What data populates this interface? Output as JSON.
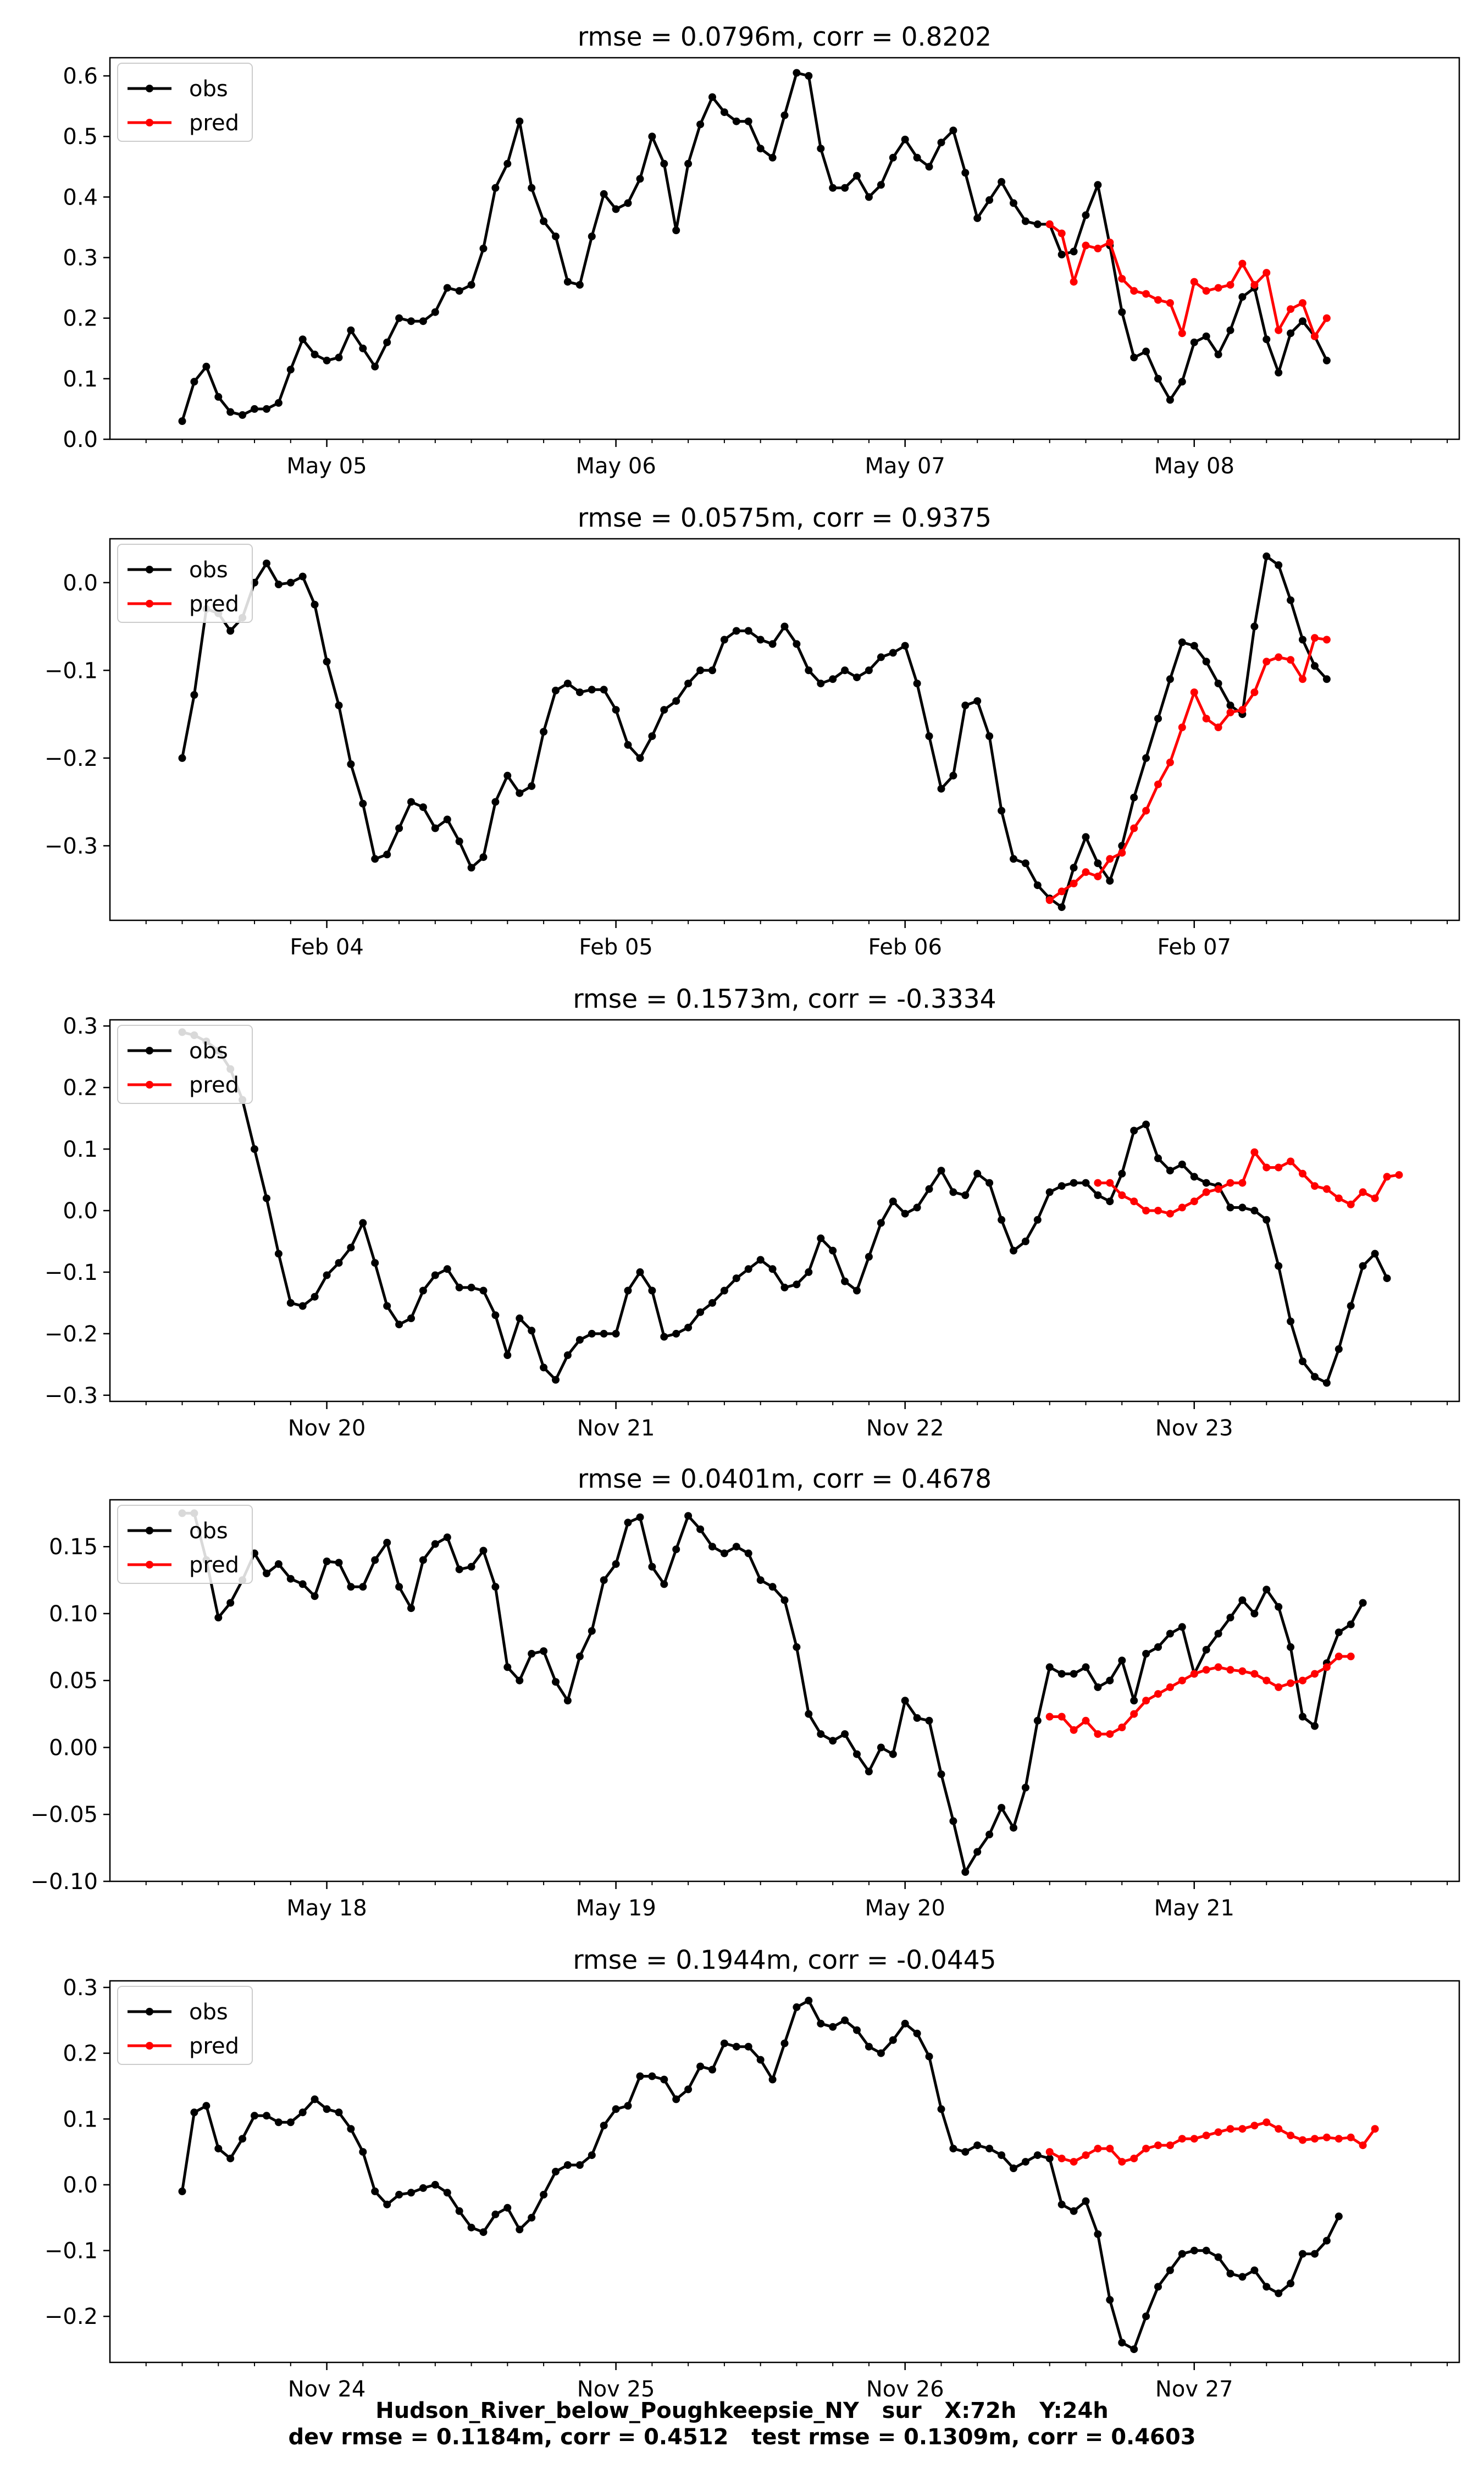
{
  "footer": {
    "line1": "Hudson_River_below_Poughkeepsie_NY   sur   X:72h   Y:24h",
    "line2": "dev rmse = 0.1184m, corr = 0.4512   test rmse = 0.1309m, corr = 0.4603"
  },
  "colors": {
    "obs": "#000000",
    "pred": "#ff0000"
  },
  "chart_data": [
    {
      "type": "line",
      "title": "rmse = 0.0796m, corr = 0.8202",
      "legend": "top-left",
      "x_tick_labels": [
        "May 05",
        "May 06",
        "May 07",
        "May 08"
      ],
      "yticks": [
        "0.0",
        "0.1",
        "0.2",
        "0.3",
        "0.4",
        "0.5",
        "0.6"
      ],
      "ylim": [
        0.0,
        0.63
      ],
      "series": [
        {
          "name": "obs",
          "values": [
            0.03,
            0.095,
            0.12,
            0.07,
            0.045,
            0.04,
            0.05,
            0.05,
            0.06,
            0.115,
            0.165,
            0.14,
            0.13,
            0.135,
            0.18,
            0.15,
            0.12,
            0.16,
            0.2,
            0.195,
            0.195,
            0.21,
            0.25,
            0.245,
            0.255,
            0.315,
            0.415,
            0.455,
            0.525,
            0.415,
            0.36,
            0.335,
            0.26,
            0.255,
            0.335,
            0.405,
            0.38,
            0.39,
            0.43,
            0.5,
            0.455,
            0.345,
            0.455,
            0.52,
            0.565,
            0.54,
            0.525,
            0.525,
            0.48,
            0.465,
            0.535,
            0.605,
            0.6,
            0.48,
            0.415,
            0.415,
            0.435,
            0.4,
            0.42,
            0.465,
            0.495,
            0.465,
            0.45,
            0.49,
            0.51,
            0.44,
            0.365,
            0.395,
            0.425,
            0.39,
            0.36,
            0.355,
            0.355,
            0.305,
            0.31,
            0.37,
            0.42,
            0.32,
            0.21,
            0.135,
            0.145,
            0.1,
            0.065,
            0.095,
            0.16,
            0.17,
            0.14,
            0.18,
            0.235,
            0.25,
            0.165,
            0.11,
            0.175,
            0.195,
            0.17,
            0.13
          ]
        },
        {
          "name": "pred",
          "x_start": 72,
          "values": [
            0.355,
            0.34,
            0.26,
            0.32,
            0.315,
            0.325,
            0.265,
            0.245,
            0.24,
            0.23,
            0.225,
            0.175,
            0.26,
            0.245,
            0.25,
            0.255,
            0.29,
            0.255,
            0.275,
            0.18,
            0.215,
            0.225,
            0.17,
            0.2
          ]
        }
      ]
    },
    {
      "type": "line",
      "title": "rmse = 0.0575m, corr = 0.9375",
      "legend": "top-left",
      "x_tick_labels": [
        "Feb 04",
        "Feb 05",
        "Feb 06",
        "Feb 07"
      ],
      "yticks": [
        "−0.3",
        "−0.2",
        "−0.1",
        "0.0"
      ],
      "ylim": [
        -0.385,
        0.05
      ],
      "series": [
        {
          "name": "obs",
          "values": [
            -0.2,
            -0.128,
            -0.03,
            -0.035,
            -0.055,
            -0.04,
            0.0,
            0.022,
            -0.002,
            0.0,
            0.007,
            -0.025,
            -0.09,
            -0.14,
            -0.207,
            -0.252,
            -0.315,
            -0.31,
            -0.28,
            -0.25,
            -0.256,
            -0.28,
            -0.27,
            -0.295,
            -0.325,
            -0.313,
            -0.25,
            -0.22,
            -0.24,
            -0.232,
            -0.17,
            -0.123,
            -0.115,
            -0.125,
            -0.122,
            -0.122,
            -0.145,
            -0.185,
            -0.2,
            -0.175,
            -0.145,
            -0.135,
            -0.115,
            -0.1,
            -0.1,
            -0.065,
            -0.055,
            -0.055,
            -0.065,
            -0.07,
            -0.05,
            -0.07,
            -0.1,
            -0.115,
            -0.11,
            -0.1,
            -0.108,
            -0.1,
            -0.085,
            -0.08,
            -0.072,
            -0.115,
            -0.175,
            -0.235,
            -0.22,
            -0.14,
            -0.135,
            -0.175,
            -0.26,
            -0.315,
            -0.32,
            -0.345,
            -0.36,
            -0.37,
            -0.325,
            -0.29,
            -0.32,
            -0.34,
            -0.3,
            -0.245,
            -0.2,
            -0.155,
            -0.11,
            -0.068,
            -0.072,
            -0.09,
            -0.115,
            -0.14,
            -0.15,
            -0.05,
            0.03,
            0.02,
            -0.02,
            -0.065,
            -0.095,
            -0.11
          ]
        },
        {
          "name": "pred",
          "x_start": 72,
          "values": [
            -0.362,
            -0.352,
            -0.343,
            -0.33,
            -0.335,
            -0.315,
            -0.308,
            -0.28,
            -0.26,
            -0.23,
            -0.205,
            -0.165,
            -0.125,
            -0.155,
            -0.165,
            -0.148,
            -0.145,
            -0.125,
            -0.09,
            -0.085,
            -0.088,
            -0.11,
            -0.063,
            -0.065
          ]
        }
      ]
    },
    {
      "type": "line",
      "title": "rmse = 0.1573m, corr = -0.3334",
      "legend": "top-left",
      "x_tick_labels": [
        "Nov 20",
        "Nov 21",
        "Nov 22",
        "Nov 23"
      ],
      "yticks": [
        "−0.3",
        "−0.2",
        "−0.1",
        "0.0",
        "0.1",
        "0.2",
        "0.3"
      ],
      "ylim": [
        -0.31,
        0.31
      ],
      "series": [
        {
          "name": "obs",
          "values": [
            0.29,
            0.285,
            0.275,
            0.26,
            0.23,
            0.18,
            0.1,
            0.02,
            -0.07,
            -0.15,
            -0.155,
            -0.14,
            -0.105,
            -0.085,
            -0.06,
            -0.02,
            -0.085,
            -0.155,
            -0.185,
            -0.175,
            -0.13,
            -0.105,
            -0.095,
            -0.125,
            -0.125,
            -0.13,
            -0.17,
            -0.235,
            -0.175,
            -0.195,
            -0.255,
            -0.275,
            -0.235,
            -0.21,
            -0.2,
            -0.2,
            -0.2,
            -0.13,
            -0.1,
            -0.13,
            -0.205,
            -0.2,
            -0.19,
            -0.165,
            -0.15,
            -0.13,
            -0.11,
            -0.095,
            -0.08,
            -0.095,
            -0.125,
            -0.12,
            -0.1,
            -0.045,
            -0.065,
            -0.115,
            -0.13,
            -0.075,
            -0.02,
            0.015,
            -0.005,
            0.005,
            0.035,
            0.065,
            0.03,
            0.025,
            0.06,
            0.045,
            -0.015,
            -0.065,
            -0.05,
            -0.015,
            0.03,
            0.04,
            0.045,
            0.045,
            0.025,
            0.015,
            0.06,
            0.13,
            0.14,
            0.085,
            0.065,
            0.075,
            0.055,
            0.045,
            0.04,
            0.005,
            0.005,
            0.0,
            -0.015,
            -0.09,
            -0.18,
            -0.245,
            -0.27,
            -0.28,
            -0.225,
            -0.155,
            -0.09,
            -0.07,
            -0.11
          ]
        },
        {
          "name": "pred",
          "x_start": 76,
          "values": [
            0.045,
            0.045,
            0.025,
            0.015,
            0.0,
            0.0,
            -0.005,
            0.005,
            0.015,
            0.03,
            0.035,
            0.045,
            0.045,
            0.095,
            0.07,
            0.07,
            0.08,
            0.06,
            0.04,
            0.035,
            0.02,
            0.01,
            0.03,
            0.02,
            0.055,
            0.058
          ]
        }
      ]
    },
    {
      "type": "line",
      "title": "rmse = 0.0401m, corr = 0.4678",
      "legend": "top-left",
      "x_tick_labels": [
        "May 18",
        "May 19",
        "May 20",
        "May 21"
      ],
      "yticks": [
        "−0.10",
        "−0.05",
        "0.00",
        "0.05",
        "0.10",
        "0.15"
      ],
      "ylim": [
        -0.1,
        0.185
      ],
      "series": [
        {
          "name": "obs",
          "values": [
            0.175,
            0.175,
            0.14,
            0.097,
            0.108,
            0.125,
            0.145,
            0.13,
            0.137,
            0.126,
            0.122,
            0.113,
            0.139,
            0.138,
            0.12,
            0.12,
            0.14,
            0.153,
            0.12,
            0.104,
            0.14,
            0.152,
            0.157,
            0.133,
            0.135,
            0.147,
            0.12,
            0.06,
            0.05,
            0.07,
            0.072,
            0.049,
            0.035,
            0.068,
            0.087,
            0.125,
            0.137,
            0.168,
            0.172,
            0.135,
            0.122,
            0.148,
            0.173,
            0.163,
            0.15,
            0.145,
            0.15,
            0.145,
            0.125,
            0.12,
            0.11,
            0.075,
            0.025,
            0.01,
            0.005,
            0.01,
            -0.005,
            -0.018,
            0.0,
            -0.005,
            0.035,
            0.022,
            0.02,
            -0.02,
            -0.055,
            -0.093,
            -0.078,
            -0.065,
            -0.045,
            -0.06,
            -0.03,
            0.02,
            0.06,
            0.055,
            0.055,
            0.06,
            0.045,
            0.05,
            0.065,
            0.035,
            0.07,
            0.075,
            0.085,
            0.09,
            0.055,
            0.073,
            0.085,
            0.097,
            0.11,
            0.1,
            0.118,
            0.105,
            0.075,
            0.023,
            0.016,
            0.063,
            0.086,
            0.092,
            0.108
          ]
        },
        {
          "name": "pred",
          "x_start": 72,
          "values": [
            0.023,
            0.023,
            0.013,
            0.02,
            0.01,
            0.01,
            0.015,
            0.025,
            0.035,
            0.04,
            0.045,
            0.05,
            0.055,
            0.058,
            0.06,
            0.058,
            0.057,
            0.055,
            0.05,
            0.045,
            0.048,
            0.05,
            0.055,
            0.06,
            0.068,
            0.068
          ]
        }
      ]
    },
    {
      "type": "line",
      "title": "rmse = 0.1944m, corr = -0.0445",
      "legend": "top-left",
      "x_tick_labels": [
        "Nov 24",
        "Nov 25",
        "Nov 26",
        "Nov 27"
      ],
      "yticks": [
        "−0.2",
        "−0.1",
        "0.0",
        "0.1",
        "0.2",
        "0.3"
      ],
      "ylim": [
        -0.27,
        0.31
      ],
      "series": [
        {
          "name": "obs",
          "values": [
            -0.01,
            0.11,
            0.12,
            0.055,
            0.04,
            0.07,
            0.105,
            0.105,
            0.095,
            0.095,
            0.11,
            0.13,
            0.115,
            0.11,
            0.085,
            0.05,
            -0.01,
            -0.03,
            -0.015,
            -0.012,
            -0.005,
            0.0,
            -0.012,
            -0.04,
            -0.065,
            -0.072,
            -0.045,
            -0.035,
            -0.068,
            -0.05,
            -0.015,
            0.02,
            0.03,
            0.03,
            0.045,
            0.09,
            0.115,
            0.12,
            0.165,
            0.165,
            0.16,
            0.13,
            0.145,
            0.18,
            0.175,
            0.215,
            0.21,
            0.21,
            0.19,
            0.16,
            0.215,
            0.27,
            0.28,
            0.245,
            0.24,
            0.25,
            0.235,
            0.21,
            0.2,
            0.22,
            0.245,
            0.23,
            0.195,
            0.115,
            0.055,
            0.05,
            0.06,
            0.055,
            0.045,
            0.025,
            0.035,
            0.045,
            0.04,
            -0.03,
            -0.04,
            -0.025,
            -0.075,
            -0.175,
            -0.24,
            -0.25,
            -0.2,
            -0.155,
            -0.13,
            -0.105,
            -0.1,
            -0.1,
            -0.11,
            -0.135,
            -0.14,
            -0.13,
            -0.155,
            -0.165,
            -0.15,
            -0.105,
            -0.105,
            -0.085,
            -0.048
          ]
        },
        {
          "name": "pred",
          "x_start": 72,
          "values": [
            0.05,
            0.04,
            0.035,
            0.045,
            0.055,
            0.055,
            0.035,
            0.04,
            0.055,
            0.06,
            0.06,
            0.07,
            0.07,
            0.075,
            0.08,
            0.085,
            0.085,
            0.09,
            0.095,
            0.085,
            0.075,
            0.068,
            0.07,
            0.072,
            0.07,
            0.072,
            0.06,
            0.085
          ]
        }
      ]
    }
  ]
}
